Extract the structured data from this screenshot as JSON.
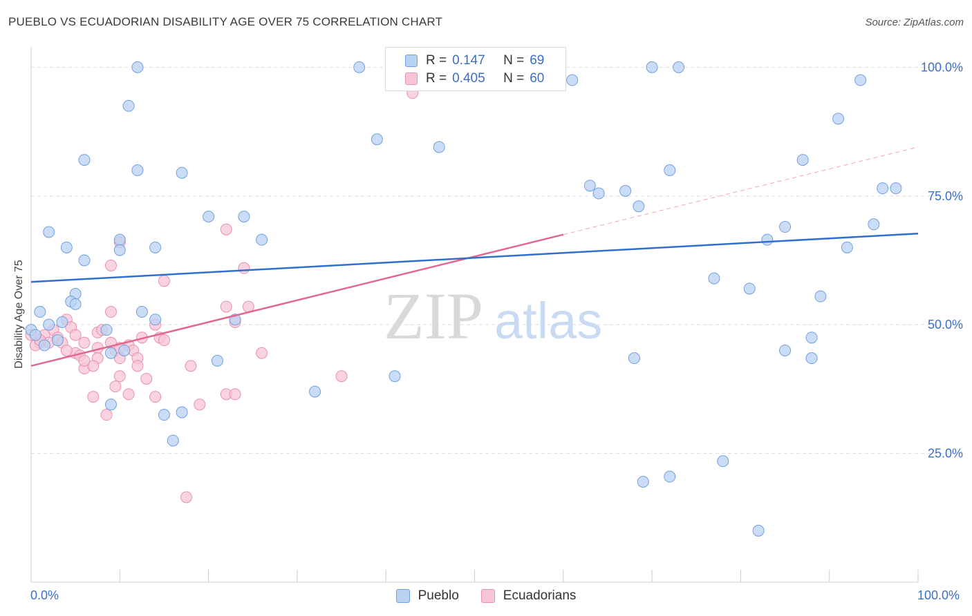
{
  "header": {
    "title": "PUEBLO VS ECUADORIAN DISABILITY AGE OVER 75 CORRELATION CHART",
    "source": "Source: ZipAtlas.com"
  },
  "watermark": {
    "zip": "ZIP",
    "atlas": "atlas"
  },
  "legend_top": {
    "rows": [
      {
        "r_label": "R =",
        "r_value": "0.147",
        "n_label": "N =",
        "n_value": "69"
      },
      {
        "r_label": "R =",
        "r_value": "0.405",
        "n_label": "N =",
        "n_value": "60"
      }
    ]
  },
  "colors": {
    "pueblo_fill": "#b9d2f3",
    "pueblo_stroke": "#6f9fe0",
    "pueblo_line": "#2f6fcf",
    "ecuador_fill": "#f7c6d6",
    "ecuador_stroke": "#ea8fae",
    "ecuador_line": "#e0688f",
    "axis_text": "#3b6fc6",
    "grid": "#dddddd"
  },
  "chart_data": {
    "type": "scatter",
    "title": "PUEBLO VS ECUADORIAN DISABILITY AGE OVER 75 CORRELATION CHART",
    "xlabel": "",
    "ylabel": "Disability Age Over 75",
    "xlim": [
      0,
      100
    ],
    "ylim": [
      0,
      103
    ],
    "x_tick_labels": [
      "0.0%",
      "100.0%"
    ],
    "y_ticks": [
      25,
      50,
      75,
      100
    ],
    "y_tick_labels": [
      "25.0%",
      "50.0%",
      "75.0%",
      "100.0%"
    ],
    "grid": true,
    "legend": "bottom-center",
    "series": [
      {
        "name": "Pueblo",
        "r": 0.147,
        "n": 69,
        "trend": {
          "x": [
            0,
            100
          ],
          "y": [
            58.3,
            67.7
          ]
        },
        "points": [
          [
            12,
            100
          ],
          [
            37,
            100
          ],
          [
            59,
            100
          ],
          [
            70,
            100
          ],
          [
            73,
            100
          ],
          [
            61,
            97.5
          ],
          [
            93.5,
            97.5
          ],
          [
            11,
            92.5
          ],
          [
            91,
            90
          ],
          [
            39,
            86
          ],
          [
            46,
            84.5
          ],
          [
            6,
            82
          ],
          [
            87,
            82
          ],
          [
            12,
            80
          ],
          [
            17,
            79.5
          ],
          [
            72,
            80
          ],
          [
            63,
            77
          ],
          [
            64,
            75.5
          ],
          [
            67,
            76
          ],
          [
            96,
            76.5
          ],
          [
            97.5,
            76.5
          ],
          [
            68.5,
            73
          ],
          [
            20,
            71
          ],
          [
            24,
            71
          ],
          [
            95,
            69.5
          ],
          [
            85,
            69
          ],
          [
            2,
            68
          ],
          [
            10,
            66.5
          ],
          [
            26,
            66.5
          ],
          [
            83,
            66.5
          ],
          [
            4,
            65
          ],
          [
            10,
            64.5
          ],
          [
            14,
            65
          ],
          [
            92,
            65
          ],
          [
            6,
            62.5
          ],
          [
            77,
            59
          ],
          [
            81,
            57
          ],
          [
            5,
            56
          ],
          [
            89,
            55.5
          ],
          [
            4.5,
            54.5
          ],
          [
            5,
            54
          ],
          [
            1,
            52.5
          ],
          [
            12.5,
            52.5
          ],
          [
            14,
            51
          ],
          [
            23,
            51
          ],
          [
            3.5,
            50.5
          ],
          [
            2,
            50
          ],
          [
            8.5,
            49
          ],
          [
            0,
            49
          ],
          [
            88,
            47.5
          ],
          [
            10.5,
            45
          ],
          [
            85,
            45
          ],
          [
            9,
            44.5
          ],
          [
            21,
            43
          ],
          [
            68,
            43.5
          ],
          [
            88,
            43.5
          ],
          [
            41,
            40
          ],
          [
            32,
            37
          ],
          [
            9,
            34.5
          ],
          [
            15,
            32.5
          ],
          [
            17,
            33
          ],
          [
            16,
            27.5
          ],
          [
            78,
            23.5
          ],
          [
            69,
            19.5
          ],
          [
            72,
            20.5
          ],
          [
            82,
            10
          ],
          [
            0.5,
            48
          ],
          [
            1.5,
            46
          ],
          [
            3,
            47
          ]
        ]
      },
      {
        "name": "Ecuadorians",
        "r": 0.405,
        "n": 60,
        "trend": {
          "x": [
            0,
            60
          ],
          "y": [
            42,
            67.5
          ],
          "x_dashed": [
            60,
            100
          ],
          "y_dashed": [
            67.5,
            84.5
          ]
        },
        "points": [
          [
            59,
            100
          ],
          [
            43,
            95
          ],
          [
            22,
            68.5
          ],
          [
            10,
            66
          ],
          [
            9,
            61.5
          ],
          [
            24,
            61
          ],
          [
            15,
            58.5
          ],
          [
            22,
            53.5
          ],
          [
            24.5,
            53.5
          ],
          [
            9,
            52.5
          ],
          [
            23,
            50.5
          ],
          [
            4,
            51
          ],
          [
            14,
            50
          ],
          [
            4.5,
            49.5
          ],
          [
            2.5,
            49
          ],
          [
            7.5,
            48.5
          ],
          [
            8,
            49
          ],
          [
            3,
            47.5
          ],
          [
            1.5,
            48
          ],
          [
            5,
            48
          ],
          [
            12.5,
            47.5
          ],
          [
            14.5,
            47.5
          ],
          [
            15,
            47
          ],
          [
            1,
            46.5
          ],
          [
            2,
            46.5
          ],
          [
            3.5,
            46.5
          ],
          [
            0.5,
            46
          ],
          [
            6,
            46.5
          ],
          [
            9,
            46.5
          ],
          [
            11,
            46
          ],
          [
            7.5,
            45.5
          ],
          [
            9.5,
            45
          ],
          [
            10,
            45.5
          ],
          [
            11.5,
            45
          ],
          [
            26,
            44.5
          ],
          [
            5,
            44.5
          ],
          [
            5.5,
            44
          ],
          [
            7.5,
            43.5
          ],
          [
            10,
            43.5
          ],
          [
            12,
            43.5
          ],
          [
            12,
            42
          ],
          [
            6,
            41.5
          ],
          [
            7,
            42
          ],
          [
            18,
            42
          ],
          [
            35,
            40
          ],
          [
            10,
            40
          ],
          [
            13,
            39.5
          ],
          [
            9.5,
            38
          ],
          [
            11,
            36.5
          ],
          [
            14,
            36
          ],
          [
            7,
            36
          ],
          [
            22,
            36.5
          ],
          [
            23,
            36.5
          ],
          [
            19,
            34.5
          ],
          [
            8.5,
            32.5
          ],
          [
            17.5,
            16.5
          ],
          [
            0,
            48
          ],
          [
            1,
            47
          ],
          [
            4,
            45
          ],
          [
            6,
            43
          ]
        ]
      }
    ]
  }
}
